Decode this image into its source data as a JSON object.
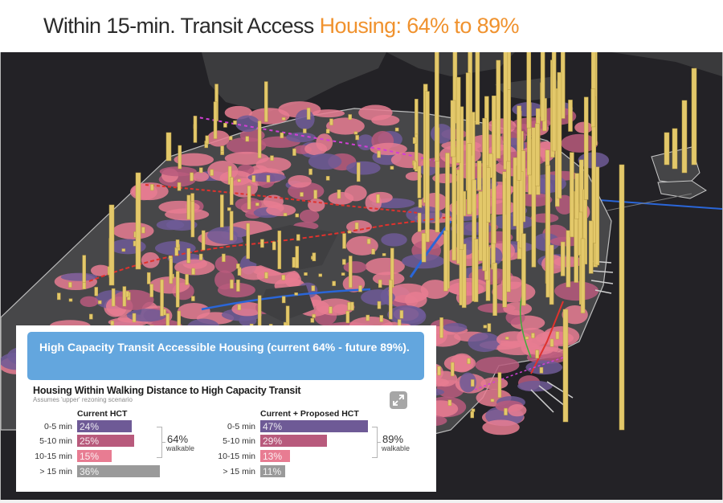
{
  "slide": {
    "title_main": "Within 15-min. Transit Access ",
    "title_accent": "Housing:  64% to 89%",
    "accent_color": "#f0922e"
  },
  "map": {
    "description": "3D extruded map of housing units with transit walksheds",
    "colors": {
      "water": "#232226",
      "land": "#4a4a4c",
      "walkshed_0_5": "#6e5a96",
      "walkshed_5_10": "#b85a7c",
      "walkshed_10_15": "#e87c92",
      "housing_bars": "#e3c86a",
      "transit_red": "#e0322d",
      "transit_blue": "#2a66d8",
      "transit_green": "#3fae3a",
      "transit_magenta": "#d23fd6"
    }
  },
  "panel": {
    "banner_text": "High Capacity Transit Accessible Housing (current 64% - future 89%).",
    "chart_title": "Housing Within Walking Distance to High Capacity Transit",
    "chart_subtitle": "Assumes 'upper' rezoning scenario",
    "expand_icon": "expand-icon"
  },
  "chart_data": [
    {
      "type": "bar",
      "orientation": "horizontal",
      "title": "Current HCT",
      "categories": [
        "0-5 min",
        "5-10 min",
        "10-15 min",
        "> 15 min"
      ],
      "values": [
        24,
        25,
        15,
        36
      ],
      "value_labels": [
        "24%",
        "25%",
        "15%",
        "36%"
      ],
      "colors": [
        "#6e5a96",
        "#b85a7c",
        "#e87c92",
        "#9a9a9a"
      ],
      "unit": "%",
      "annotation": {
        "value": "64%",
        "label": "walkable",
        "spans": [
          "0-5 min",
          "5-10 min",
          "10-15 min"
        ]
      },
      "grid": false
    },
    {
      "type": "bar",
      "orientation": "horizontal",
      "title": "Current + Proposed HCT",
      "categories": [
        "0-5 min",
        "5-10 min",
        "10-15 min",
        "> 15 min"
      ],
      "values": [
        47,
        29,
        13,
        11
      ],
      "value_labels": [
        "47%",
        "29%",
        "13%",
        "11%"
      ],
      "colors": [
        "#6e5a96",
        "#b85a7c",
        "#e87c92",
        "#9a9a9a"
      ],
      "unit": "%",
      "annotation": {
        "value": "89%",
        "label": "walkable",
        "spans": [
          "0-5 min",
          "5-10 min",
          "10-15 min"
        ]
      },
      "grid": false
    }
  ]
}
